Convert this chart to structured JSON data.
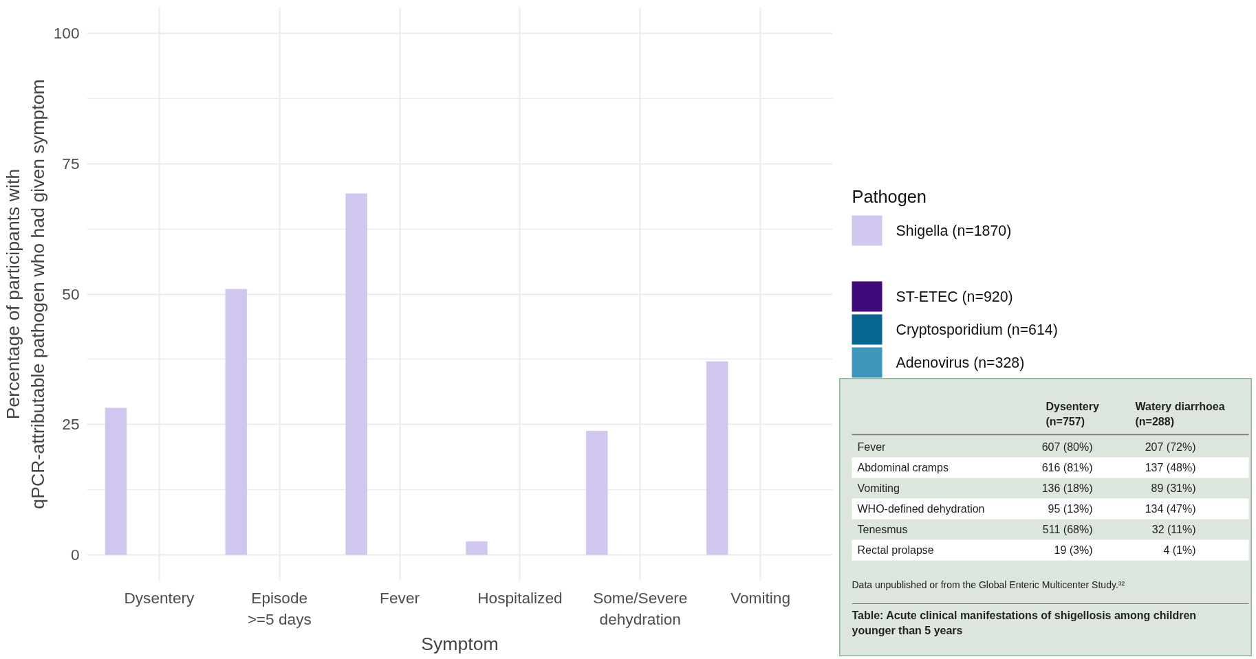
{
  "chart_data": [
    {
      "type": "bar",
      "xlabel": "Symptom",
      "ylabel": "Percentage of participants with\nqPCR-attributable pathogen who had given symptom",
      "categories": [
        "Dysentery",
        "Episode\n>=5 days",
        "Fever",
        "Hospitalized",
        "Some/Severe\ndehydration",
        "Vomiting"
      ],
      "series": [
        {
          "name": "Shigella (n=1870)",
          "color": "#d0c6ee",
          "values": [
            28.2,
            51.0,
            69.3,
            2.6,
            23.8,
            37.1
          ]
        },
        {
          "values": [
            null,
            null,
            null,
            null,
            null,
            null
          ]
        },
        {
          "name": "ST-ETEC (n=920)",
          "color": "#3f0a7a",
          "values": [
            null,
            null,
            null,
            null,
            null,
            null
          ]
        },
        {
          "name": "Cryptosporidium (n=614)",
          "color": "#07668f",
          "values": [
            null,
            null,
            null,
            null,
            null,
            null
          ]
        },
        {
          "name": "Adenovirus (n=328)",
          "color": "#3f96bd",
          "values": [
            null,
            null,
            null,
            null,
            null,
            null
          ]
        }
      ],
      "legend_title": "Pathogen",
      "legend": "right",
      "ylim": [
        -5,
        105
      ],
      "yticks": [
        0,
        25,
        50,
        75,
        100
      ],
      "grid": true
    },
    {
      "type": "other",
      "title": "Table: Acute clinical manifestations of shigellosis among children younger than 5 years",
      "annotations": [
        "Dysentery\n(n=757)",
        "Watery diarrhoea\n(n=288)",
        "Fever",
        "607 (80%)",
        "207 (72%)",
        "Abdominal cramps",
        "616 (81%)",
        "137 (48%)",
        "Vomiting",
        "136 (18%)",
        "89 (31%)",
        "WHO-defined dehydration",
        "95 (13%)",
        "134 (47%)",
        "Tenesmus",
        "511 (68%)",
        "32 (11%)",
        "Rectal prolapse",
        "19 (3%)",
        "4 (1%)",
        "Data unpublished or from the Global Enteric Multicenter Study.³²"
      ]
    }
  ]
}
